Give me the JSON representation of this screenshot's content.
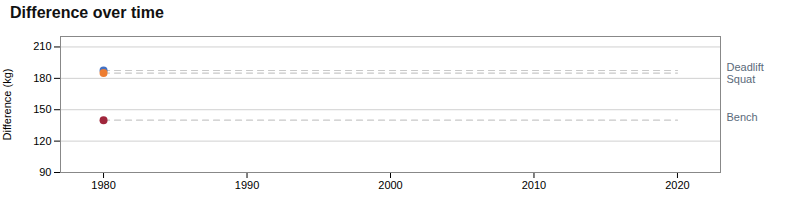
{
  "chart_data": {
    "type": "line",
    "title": "Difference over time",
    "ylabel": "Difference (kg)",
    "x": [
      1980,
      2020
    ],
    "series": [
      {
        "name": "Deadlift",
        "color": "#4472c4",
        "values": [
          187.5,
          187.5
        ]
      },
      {
        "name": "Squat",
        "color": "#ed7d31",
        "values": [
          185.0,
          185.0
        ]
      },
      {
        "name": "Bench",
        "color": "#a0263c",
        "values": [
          140.0,
          140.0
        ]
      }
    ],
    "color": "#c8c8c8",
    "marker": "o",
    "line_style": "dashed",
    "xlim": [
      1977,
      2023
    ],
    "ylim": [
      90,
      220
    ],
    "xticks": [
      1980,
      1990,
      2000,
      2010,
      2020
    ],
    "yticks": [
      90,
      120,
      150,
      180,
      210
    ],
    "grid": "y"
  }
}
